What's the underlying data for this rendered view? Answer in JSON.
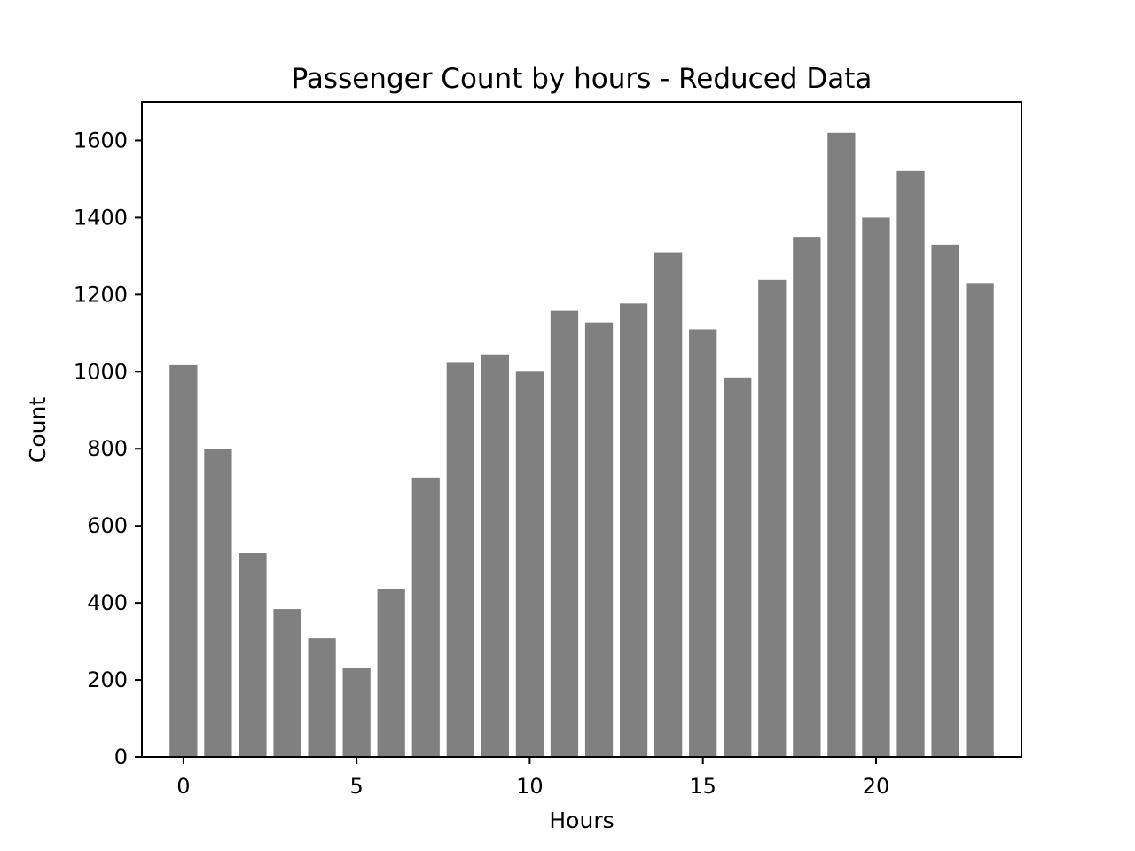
{
  "chart_data": {
    "type": "bar",
    "title": "Passenger Count by hours - Reduced Data",
    "xlabel": "Hours",
    "ylabel": "Count",
    "x": [
      0,
      1,
      2,
      3,
      4,
      5,
      6,
      7,
      8,
      9,
      10,
      11,
      12,
      13,
      14,
      15,
      16,
      17,
      18,
      19,
      20,
      21,
      22,
      23
    ],
    "values": [
      1017,
      799,
      529,
      384,
      308,
      230,
      435,
      725,
      1025,
      1045,
      1000,
      1158,
      1128,
      1177,
      1310,
      1110,
      985,
      1238,
      1350,
      1620,
      1400,
      1521,
      1330,
      1230
    ],
    "xlim": [
      -1.2,
      24.2
    ],
    "ylim": [
      0,
      1700
    ],
    "xticks": [
      0,
      5,
      10,
      15,
      20
    ],
    "yticks": [
      0,
      200,
      400,
      600,
      800,
      1000,
      1200,
      1400,
      1600
    ],
    "bar_color": "#808080",
    "grid": false,
    "legend": "none"
  }
}
